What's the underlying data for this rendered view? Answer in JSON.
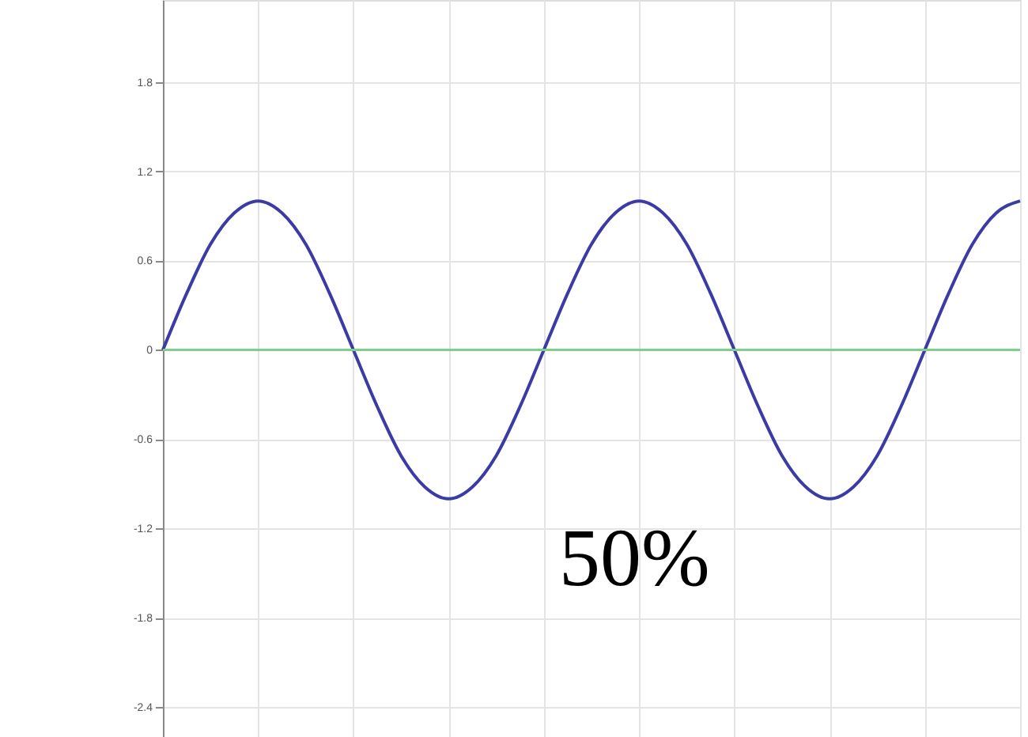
{
  "chart_data": {
    "type": "line",
    "categories": [
      null,
      null,
      null,
      null,
      null,
      null,
      null,
      null,
      null,
      null,
      null,
      null,
      null,
      null,
      null,
      null,
      null,
      null,
      null,
      null,
      null,
      null,
      null,
      null,
      null,
      null,
      null,
      null,
      null,
      null,
      null,
      null,
      null,
      null,
      null,
      null,
      null
    ],
    "series": [
      {
        "color": "#3b3ba6",
        "values": [
          0,
          0.38,
          0.71,
          0.92,
          1,
          0.92,
          0.71,
          0.38,
          0,
          -0.38,
          -0.71,
          -0.92,
          -1,
          -0.92,
          -0.71,
          -0.38,
          0,
          0.38,
          0.71,
          0.92,
          1,
          0.92,
          0.71,
          0.38,
          0,
          -0.38,
          -0.71,
          -0.92,
          -1,
          -0.92,
          -0.71,
          -0.38,
          0,
          0.38,
          0.71,
          0.92,
          1
        ]
      }
    ],
    "ylim": [
      -2.6,
      2.35
    ],
    "yticks": [
      -2.4,
      -1.8,
      -1.2,
      -0.6,
      0,
      0.6,
      1.2,
      1.8
    ],
    "ref_lines": [
      {
        "axis": "y",
        "value": 0,
        "color": "#7fcf8c"
      }
    ],
    "annotations": [
      "50%"
    ],
    "grid": true,
    "tick_labels": "y",
    "marker": "none",
    "line_style": "solid"
  }
}
